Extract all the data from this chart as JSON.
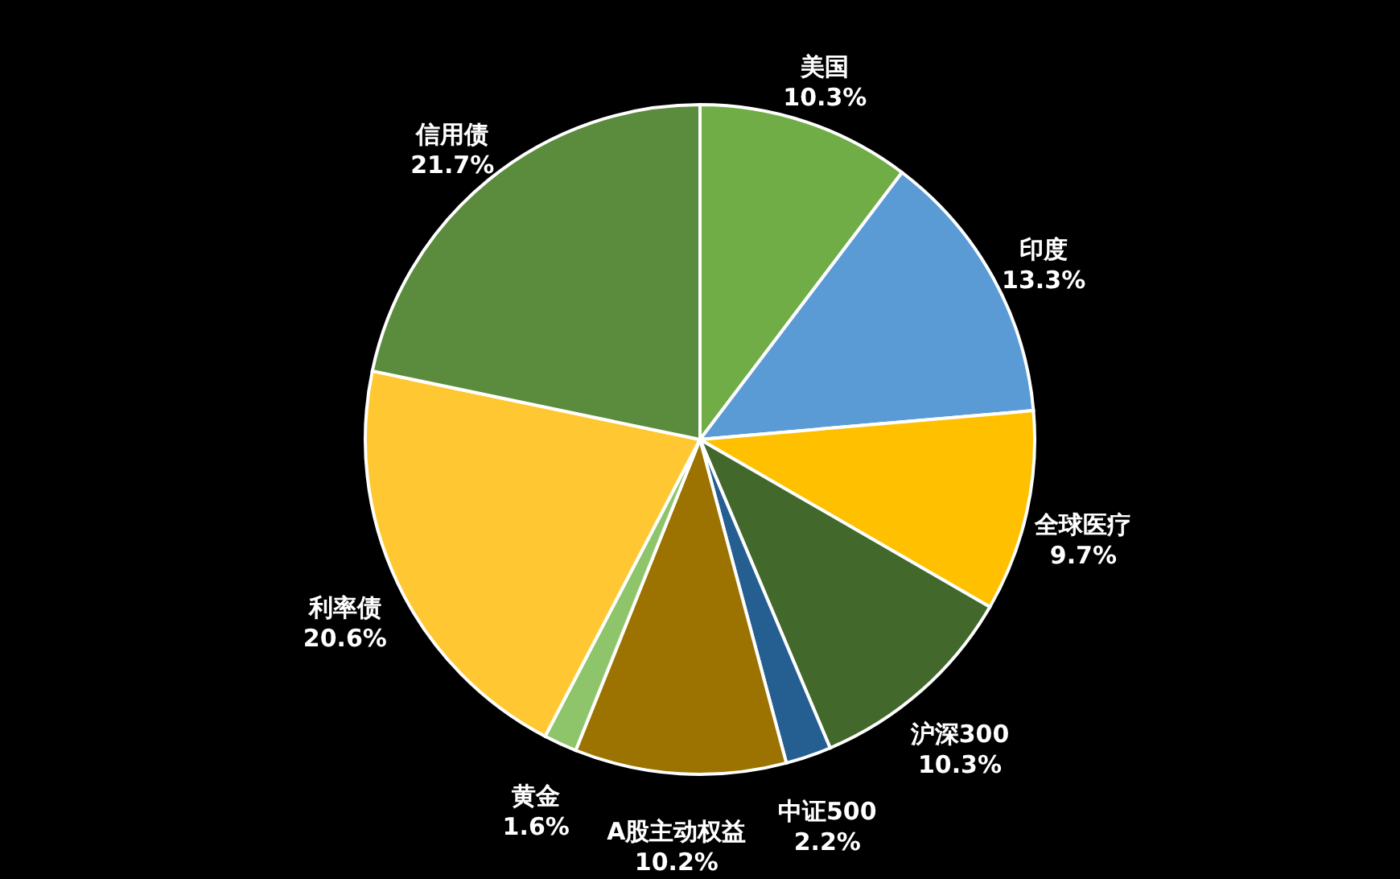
{
  "chart_data": {
    "type": "pie",
    "categories": [
      "美国",
      "印度",
      "全球医疗",
      "沪深300",
      "中证500",
      "A股主动权益",
      "黄金",
      "利率债",
      "信用债"
    ],
    "values": [
      10.3,
      13.3,
      9.7,
      10.3,
      2.2,
      10.2,
      1.6,
      20.6,
      21.7
    ],
    "value_labels": [
      "10.3%",
      "13.3%",
      "9.7%",
      "10.3%",
      "2.2%",
      "10.2%",
      "1.6%",
      "20.6%",
      "21.7%"
    ],
    "colors": [
      "#70ad47",
      "#5b9bd5",
      "#ffc000",
      "#43682b",
      "#255e91",
      "#9c7300",
      "#8fc56a",
      "#ffc832",
      "#5b8b3c"
    ]
  }
}
